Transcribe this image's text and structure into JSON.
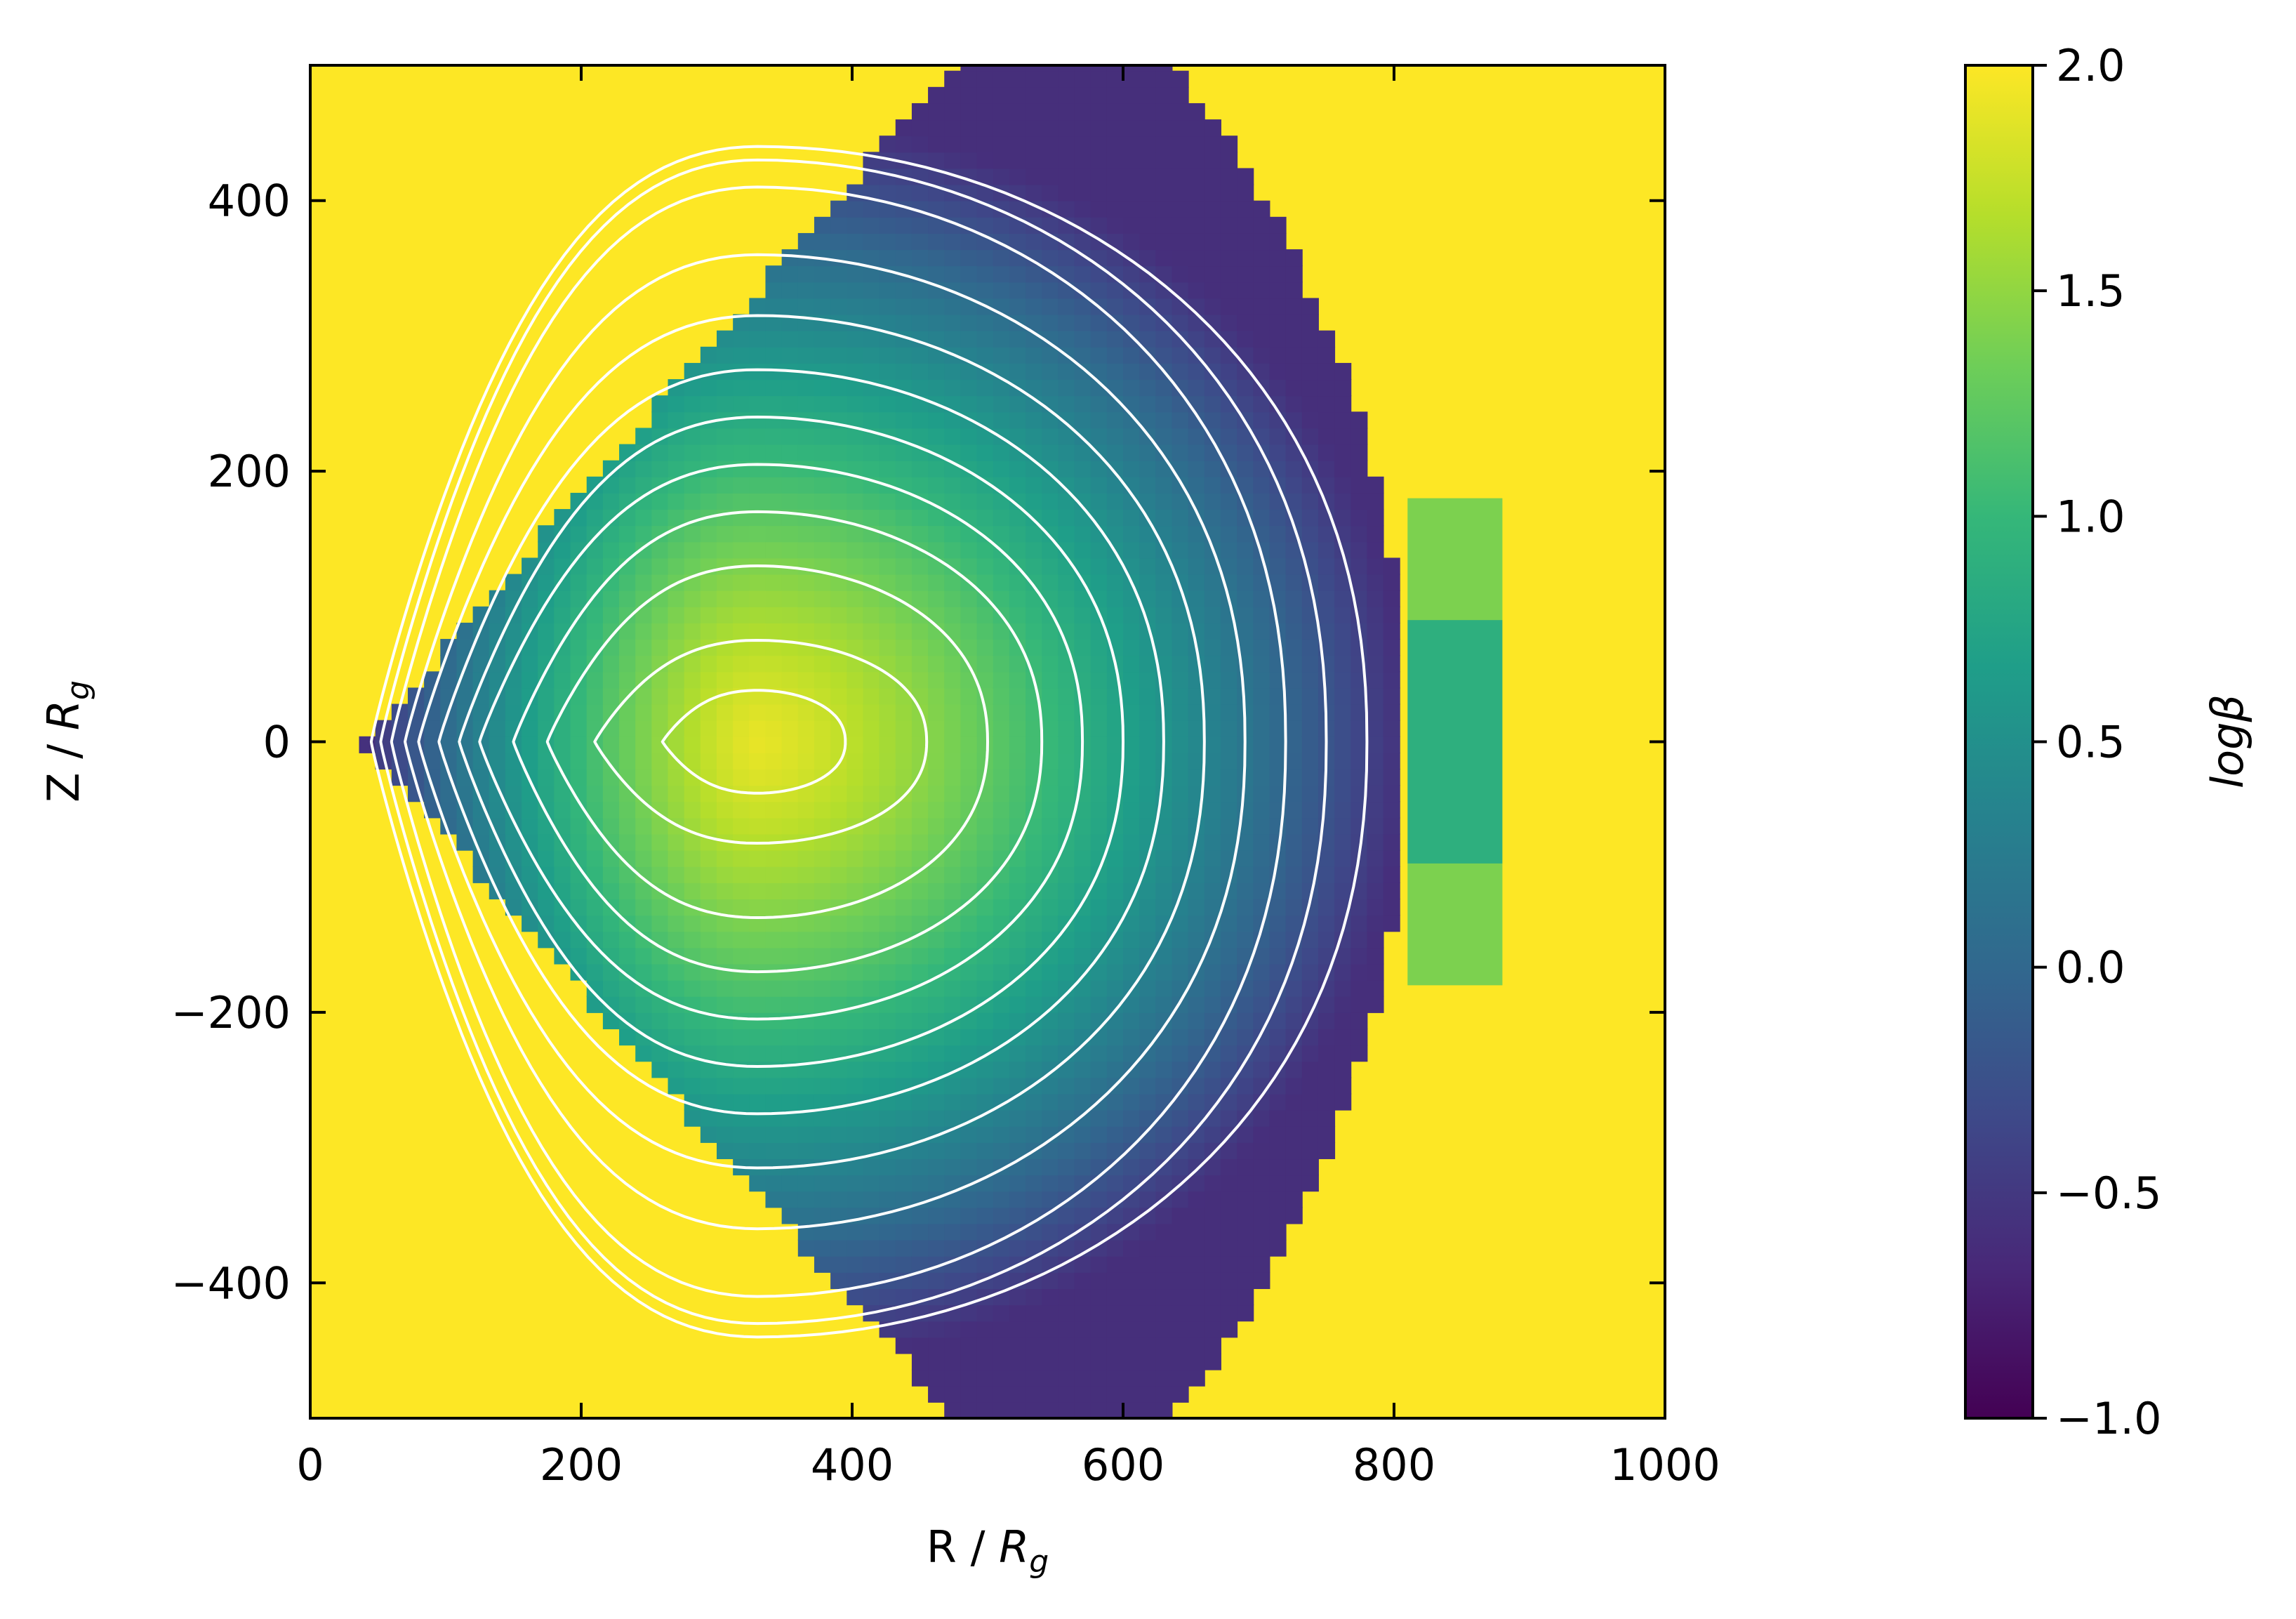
{
  "colors": {
    "viridis": [
      "#440154",
      "#482878",
      "#3e4989",
      "#31688e",
      "#26828e",
      "#1f9e89",
      "#35b779",
      "#6ece58",
      "#b5de2b",
      "#fde725"
    ],
    "contour": "#ffffff",
    "background": "#fde725"
  },
  "chart_data": {
    "type": "heatmap",
    "xlabel_main": "R / ",
    "xlabel_sym": "R",
    "xlabel_sub": "g",
    "ylabel_main": "Z / ",
    "ylabel_sym": "R",
    "ylabel_sub": "g",
    "xlim": [
      0,
      1000
    ],
    "ylim": [
      -500,
      500
    ],
    "x_ticks": [
      0,
      200,
      400,
      600,
      800,
      1000
    ],
    "x_tick_labels": [
      "0",
      "200",
      "400",
      "600",
      "800",
      "1000"
    ],
    "y_ticks": [
      -400,
      -200,
      0,
      200,
      400
    ],
    "y_tick_labels": [
      "−400",
      "−200",
      "0",
      "200",
      "400"
    ],
    "colorbar": {
      "label": "logβ",
      "range": [
        -1.0,
        2.0
      ],
      "ticks": [
        -1.0,
        -0.5,
        0.0,
        0.5,
        1.0,
        1.5,
        2.0
      ],
      "tick_labels": [
        "−1.0",
        "−0.5",
        "0.0",
        "0.5",
        "1.0",
        "1.5",
        "2.0"
      ],
      "colormap": "viridis"
    },
    "field": {
      "description_values": "logβ is about 2.0 (saturated) outside the torus; inside, it falls from ~1.9 at the core near R≈330 to about −0.6 at the outer edge R≈810; the torus is confined to the wedge |Z| < 1.15·(R−40) and R < 810",
      "core_R": 330,
      "inner_edge_R": 40,
      "outer_edge_R": 810,
      "cone_slope": 1.15,
      "core_value": 1.9,
      "edge_value": -0.6,
      "outer_patch": {
        "R_range": [
          810,
          880
        ],
        "Z_range": [
          -180,
          180
        ],
        "values": [
          1.4,
          0.9,
          0.9,
          1.4
        ]
      }
    },
    "contours": {
      "color": "white",
      "center_R": 330,
      "levels_outer_R": [
        395,
        455,
        500,
        540,
        570,
        600,
        630,
        660,
        690,
        720,
        750,
        780
      ],
      "inner_edge_R": [
        260,
        210,
        175,
        150,
        125,
        110,
        95,
        80,
        70,
        60,
        52,
        45
      ],
      "peak_Z": [
        38,
        75,
        130,
        170,
        205,
        240,
        275,
        315,
        360,
        410,
        430,
        440
      ]
    }
  }
}
